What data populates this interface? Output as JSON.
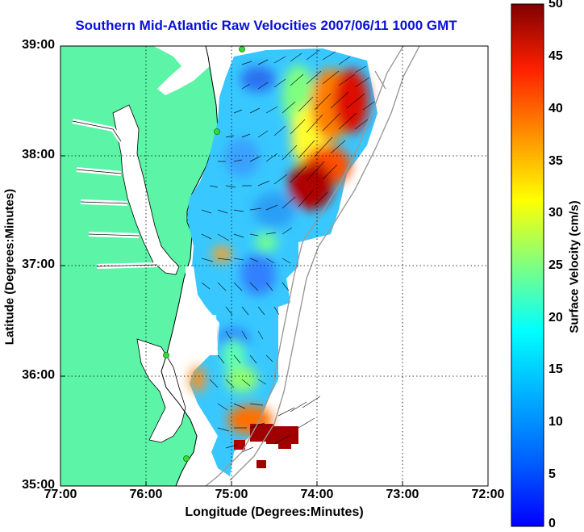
{
  "title": "Southern Mid-Atlantic Raw Velocities 2007/06/11 1000 GMT",
  "axes": {
    "xlabel": "Longitude (Degrees:Minutes)",
    "ylabel": "Latitude (Degrees:Minutes)",
    "xticks": [
      "77:00",
      "76:00",
      "75:00",
      "74:00",
      "73:00",
      "72:00"
    ],
    "yticks": [
      "39:00",
      "38:00",
      "37:00",
      "36:00",
      "35:00"
    ]
  },
  "colorbar": {
    "label": "Surface Velocity (cm/s)",
    "ticks": [
      "50",
      "45",
      "40",
      "35",
      "30",
      "25",
      "20",
      "15",
      "10",
      "5",
      "0"
    ],
    "min": 0,
    "max": 50,
    "colormap": "jet"
  },
  "colors": {
    "land": "#5cf5a7",
    "title": "#0b10d8",
    "grid": "#000000",
    "bathymetry": "#9a9a9a",
    "station": "#33dd33"
  }
}
